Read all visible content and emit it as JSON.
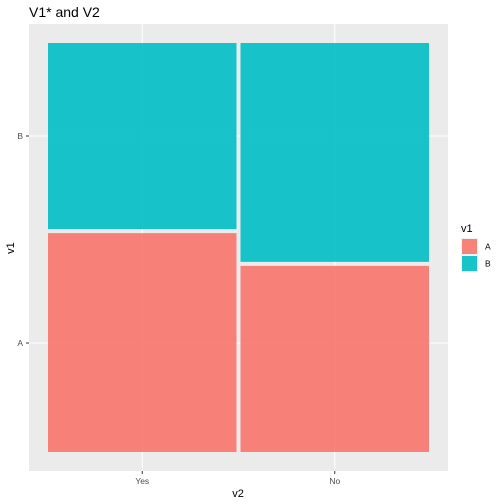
{
  "chart_data": {
    "type": "mosaic",
    "title": "V1* and V2",
    "xlabel": "v2",
    "ylabel": "v1",
    "categories": [
      "Yes",
      "No"
    ],
    "column_widths": [
      0.5,
      0.5
    ],
    "series": [
      {
        "name": "A",
        "color": "#F8766D",
        "values": [
          0.54,
          0.46
        ]
      },
      {
        "name": "B",
        "color": "#00BFC4",
        "values": [
          0.46,
          0.54
        ]
      }
    ],
    "y_ticks": [
      "A",
      "B"
    ],
    "legend": {
      "title": "v1",
      "position": "right",
      "entries": [
        "A",
        "B"
      ]
    },
    "grid": true,
    "panel_background": "#EBEBEB",
    "grid_color": "#FFFFFF"
  }
}
